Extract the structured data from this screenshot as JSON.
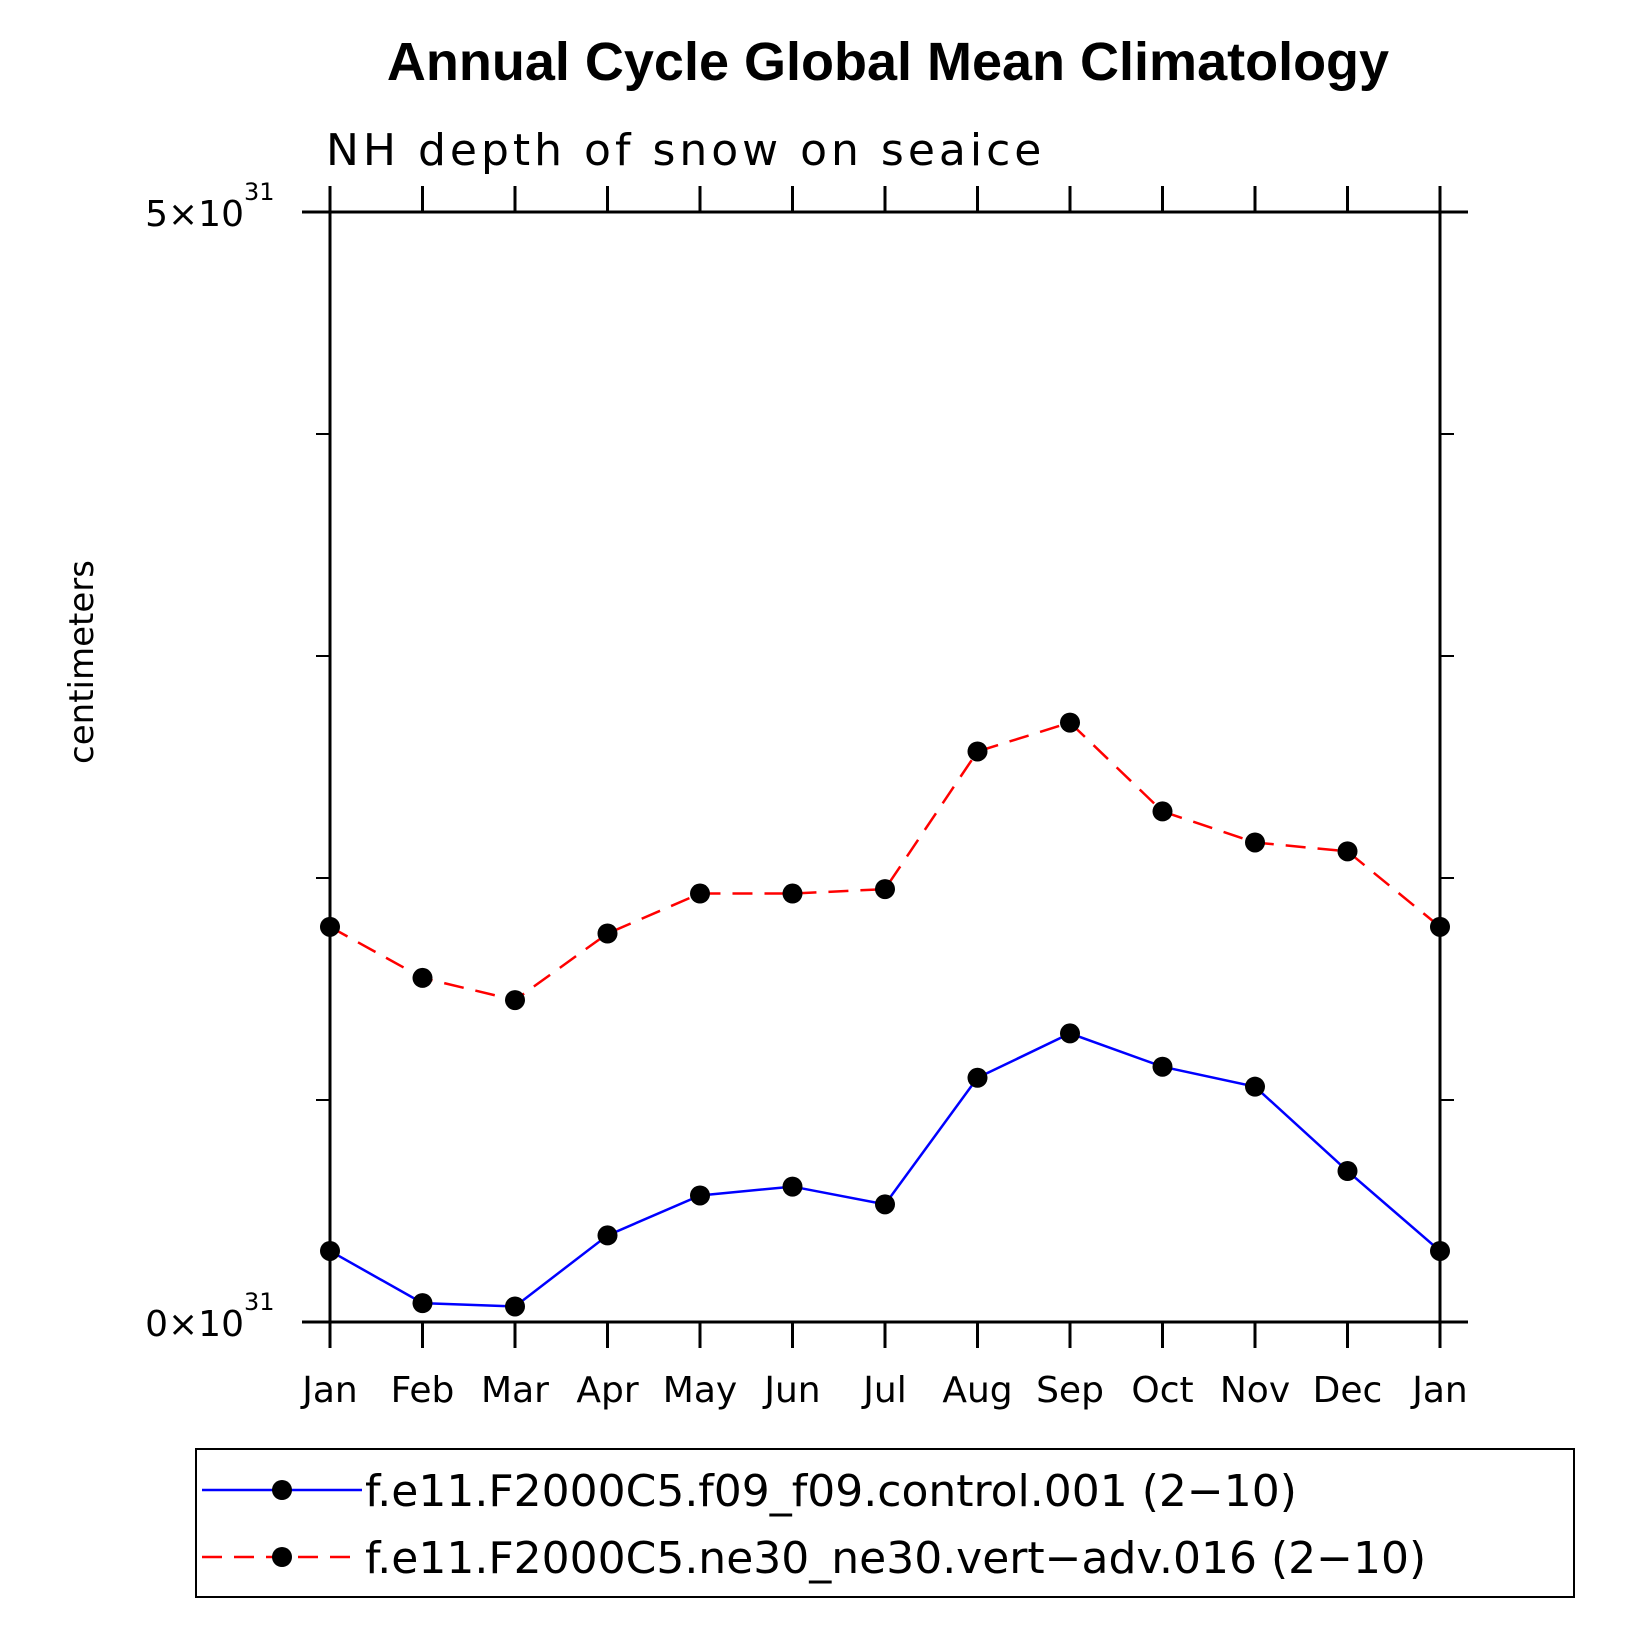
{
  "chart_data": {
    "type": "line",
    "title": "Annual Cycle Global Mean Climatology",
    "subtitle": "NH depth of snow on seaice",
    "ylabel": "centimeters",
    "ylim": [
      0,
      5
    ],
    "y_exponent": "31",
    "y_tick_labels": [
      {
        "value": 0,
        "mantissa": "0×10",
        "exp": "31"
      },
      {
        "value": 5,
        "mantissa": "5×10",
        "exp": "31"
      }
    ],
    "y_minor_ticks": [
      1,
      2,
      3,
      4
    ],
    "categories": [
      "Jan",
      "Feb",
      "Mar",
      "Apr",
      "May",
      "Jun",
      "Jul",
      "Aug",
      "Sep",
      "Oct",
      "Nov",
      "Dec",
      "Jan"
    ],
    "series": [
      {
        "name": "f.e11.F2000C5.f09_f09.control.001 (2−10)",
        "color": "#0000ff",
        "dash": "solid",
        "values": [
          0.32,
          0.085,
          0.07,
          0.39,
          0.57,
          0.61,
          0.53,
          1.1,
          1.3,
          1.15,
          1.06,
          0.68,
          0.32
        ]
      },
      {
        "name": "f.e11.F2000C5.ne30_ne30.vert−adv.016 (2−10)",
        "color": "#ff0000",
        "dash": "dashed",
        "values": [
          1.78,
          1.55,
          1.45,
          1.75,
          1.93,
          1.93,
          1.95,
          2.57,
          2.7,
          2.3,
          2.16,
          2.12,
          1.78
        ]
      }
    ],
    "legend": "bottom"
  }
}
